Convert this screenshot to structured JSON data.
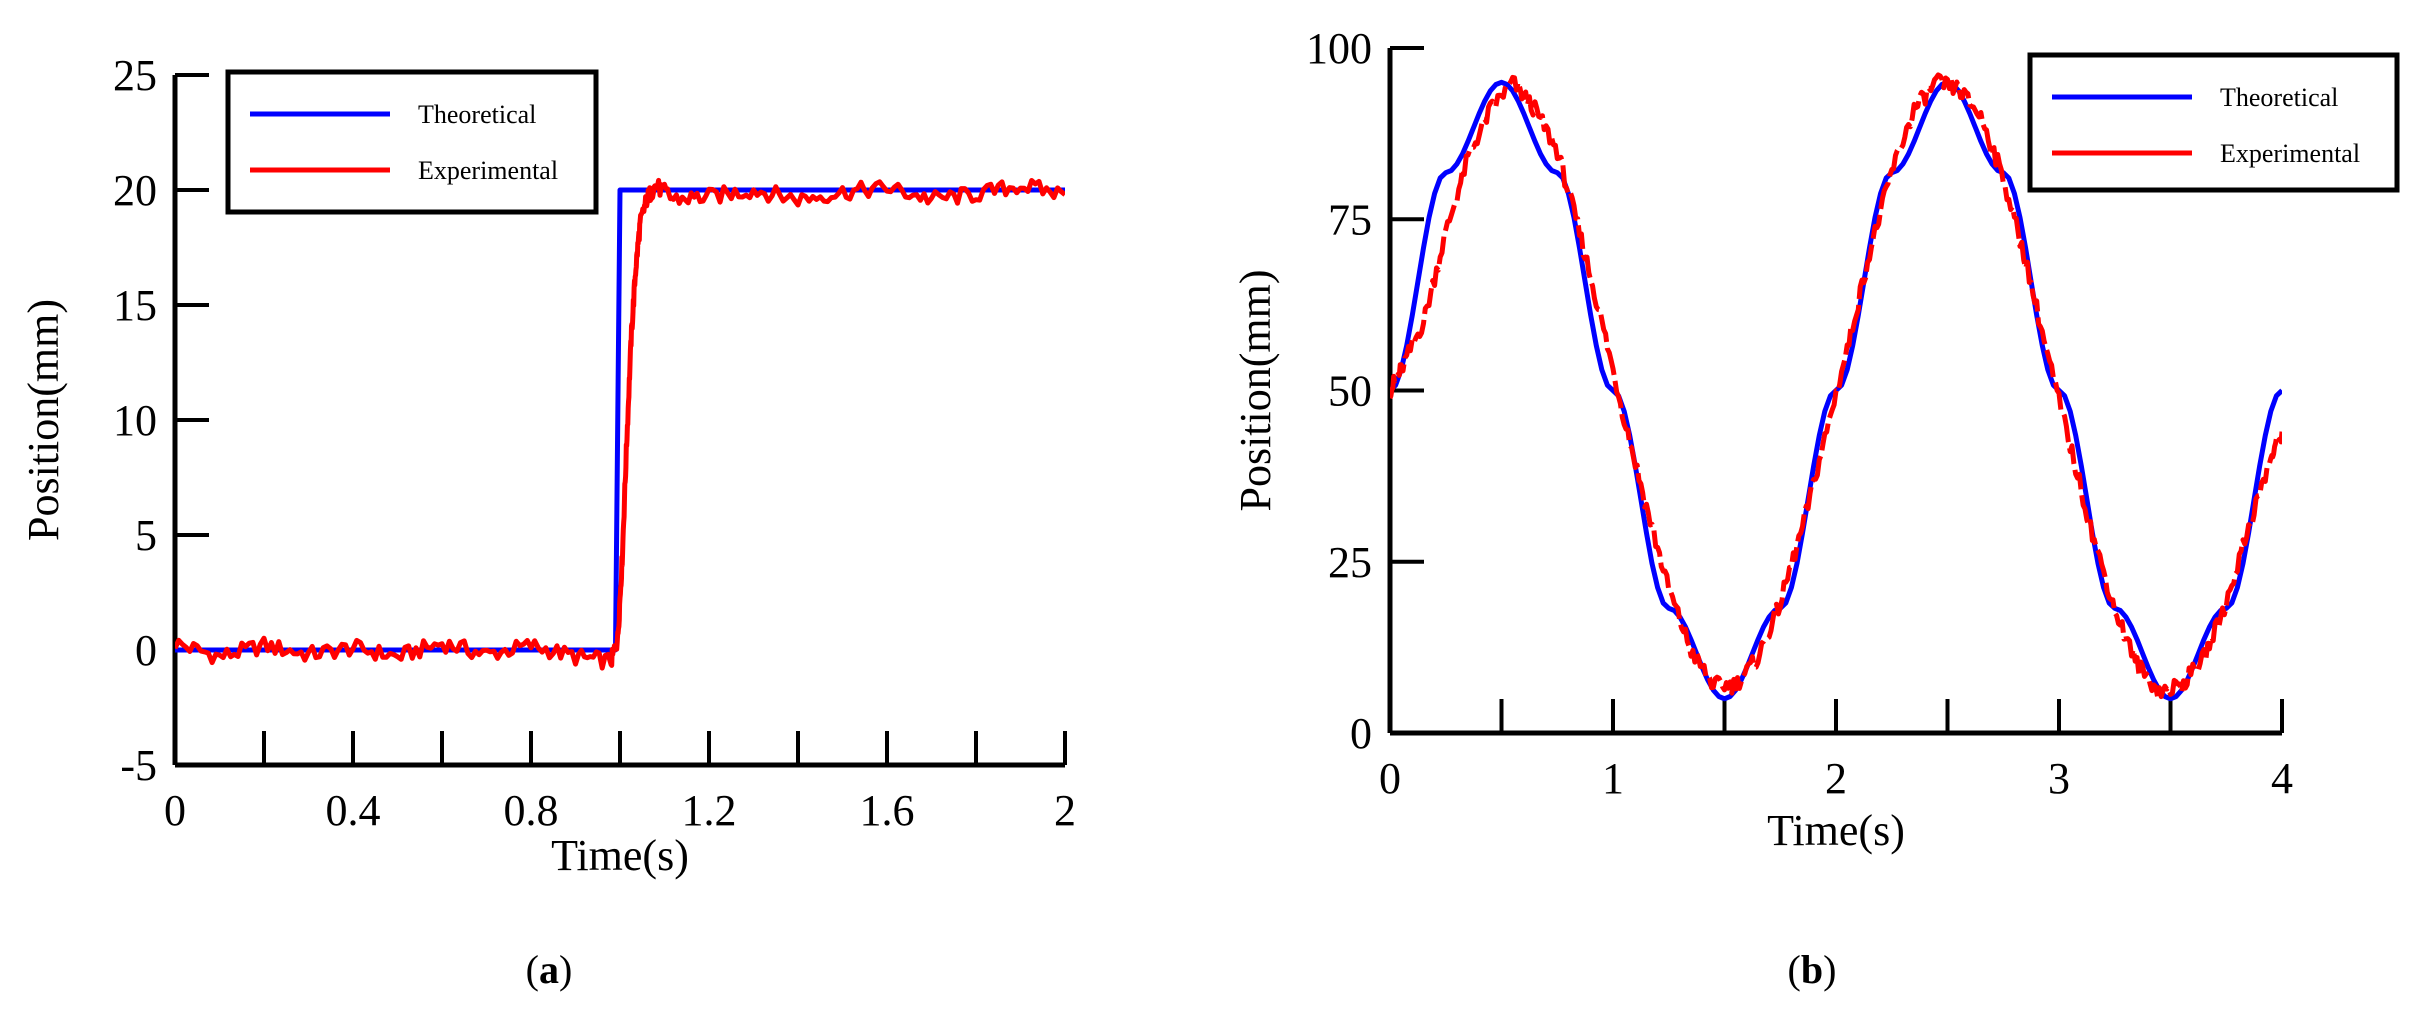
{
  "chart_data": [
    {
      "type": "line",
      "panel_label": "a",
      "xlabel": "Time(s)",
      "ylabel": "Position(mm)",
      "xlim": [
        0,
        2
      ],
      "ylim": [
        -5,
        25
      ],
      "xticks": [
        0,
        0.4,
        0.8,
        1.2,
        1.6,
        2
      ],
      "xtick_labels": [
        "0",
        "0.4",
        "0.8",
        "1.2",
        "1.6",
        "2"
      ],
      "yticks": [
        -5,
        0,
        5,
        10,
        15,
        20,
        25
      ],
      "ytick_labels": [
        "-5",
        "0",
        "5",
        "10",
        "15",
        "20",
        "25"
      ],
      "legend_position": "top-right",
      "series": [
        {
          "name": "Theoretical",
          "color": "#0000ff",
          "x": [
            0,
            0.99,
            1.0,
            2.0
          ],
          "y": [
            0,
            0,
            20,
            20
          ]
        },
        {
          "name": "Experimental",
          "color": "#ff0000",
          "x": [
            0,
            0.1,
            0.2,
            0.3,
            0.4,
            0.5,
            0.6,
            0.7,
            0.8,
            0.9,
            0.98,
            0.995,
            1.005,
            1.015,
            1.025,
            1.035,
            1.045,
            1.06,
            1.08,
            1.12,
            1.2,
            1.3,
            1.4,
            1.5,
            1.6,
            1.7,
            1.8,
            1.9,
            2.0
          ],
          "y": [
            0.3,
            -0.3,
            0.2,
            -0.2,
            0.1,
            -0.3,
            0.3,
            -0.2,
            0.2,
            -0.3,
            -0.5,
            0.5,
            4,
            9,
            13.5,
            16.5,
            18.5,
            19.6,
            20.2,
            19.6,
            19.7,
            20.0,
            19.6,
            19.9,
            20.1,
            19.6,
            19.8,
            20.2,
            19.8
          ]
        }
      ]
    },
    {
      "type": "line",
      "panel_label": "b",
      "xlabel": "Time(s)",
      "ylabel": "Position(mm)",
      "xlim": [
        0,
        4
      ],
      "ylim": [
        0,
        100
      ],
      "xticks": [
        0,
        1,
        2,
        3,
        4
      ],
      "xtick_labels": [
        "0",
        "1",
        "2",
        "3",
        "4"
      ],
      "yticks": [
        0,
        25,
        50,
        75,
        100
      ],
      "ytick_labels": [
        "0",
        "25",
        "50",
        "75",
        "100"
      ],
      "legend_position": "top-right",
      "series": [
        {
          "name": "Theoretical",
          "color": "#0000ff",
          "x": [
            0,
            0.25,
            0.5,
            0.75,
            1.0,
            1.25,
            1.5,
            1.75,
            2.0,
            2.25,
            2.5,
            2.75,
            3.0,
            3.25,
            3.5,
            3.75,
            4.0
          ],
          "y": [
            50,
            81.8,
            95,
            81.8,
            50,
            18.2,
            5,
            18.2,
            50,
            81.8,
            95,
            81.8,
            50,
            18.2,
            5,
            18.2,
            50
          ]
        },
        {
          "name": "Experimental",
          "color": "#ff0000",
          "x": [
            0,
            0.05,
            0.15,
            0.25,
            0.35,
            0.45,
            0.55,
            0.65,
            0.75,
            0.85,
            0.95,
            1.05,
            1.15,
            1.25,
            1.35,
            1.45,
            1.55,
            1.65,
            1.75,
            1.85,
            1.95,
            2.05,
            2.15,
            2.25,
            2.35,
            2.45,
            2.55,
            2.65,
            2.75,
            2.85,
            2.95,
            3.05,
            3.15,
            3.25,
            3.35,
            3.45,
            3.55,
            3.65,
            3.75,
            3.85,
            3.95,
            4.0
          ],
          "y": [
            50,
            53,
            60,
            73,
            84,
            91,
            95,
            91,
            85,
            73,
            60,
            46,
            33,
            21,
            12,
            7,
            7,
            11,
            19,
            30,
            43,
            56,
            70,
            82,
            91,
            95,
            94,
            90,
            81,
            69,
            55,
            42,
            29,
            18,
            10,
            6,
            7,
            11,
            19,
            30,
            40,
            44
          ]
        }
      ]
    }
  ]
}
